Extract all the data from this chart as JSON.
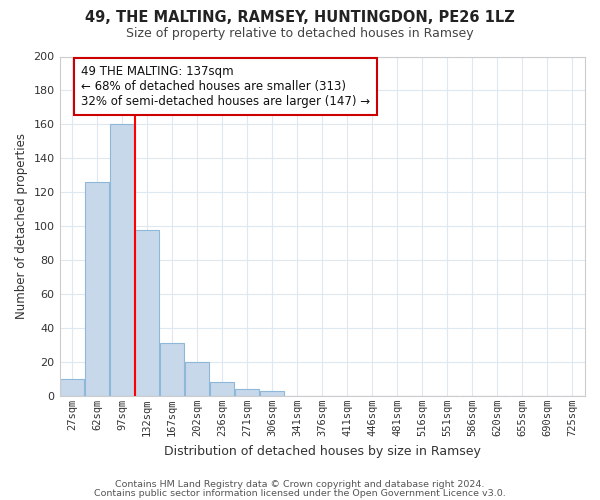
{
  "title": "49, THE MALTING, RAMSEY, HUNTINGDON, PE26 1LZ",
  "subtitle": "Size of property relative to detached houses in Ramsey",
  "xlabel": "Distribution of detached houses by size in Ramsey",
  "ylabel": "Number of detached properties",
  "bar_labels": [
    "27sqm",
    "62sqm",
    "97sqm",
    "132sqm",
    "167sqm",
    "202sqm",
    "236sqm",
    "271sqm",
    "306sqm",
    "341sqm",
    "376sqm",
    "411sqm",
    "446sqm",
    "481sqm",
    "516sqm",
    "551sqm",
    "586sqm",
    "620sqm",
    "655sqm",
    "690sqm",
    "725sqm"
  ],
  "bar_values": [
    10,
    126,
    160,
    98,
    31,
    20,
    8,
    4,
    3,
    0,
    0,
    0,
    0,
    0,
    0,
    0,
    0,
    0,
    0,
    0,
    0
  ],
  "bar_color": "#c8d8eb",
  "bar_edge_color": "#8fb8d8",
  "ylim": [
    0,
    200
  ],
  "yticks": [
    0,
    20,
    40,
    60,
    80,
    100,
    120,
    140,
    160,
    180,
    200
  ],
  "red_line_index": 3,
  "annotation_line1": "49 THE MALTING: 137sqm",
  "annotation_line2": "← 68% of detached houses are smaller (313)",
  "annotation_line3": "32% of semi-detached houses are larger (147) →",
  "footer_line1": "Contains HM Land Registry data © Crown copyright and database right 2024.",
  "footer_line2": "Contains public sector information licensed under the Open Government Licence v3.0.",
  "background_color": "#ffffff",
  "grid_color": "#dde8f0"
}
